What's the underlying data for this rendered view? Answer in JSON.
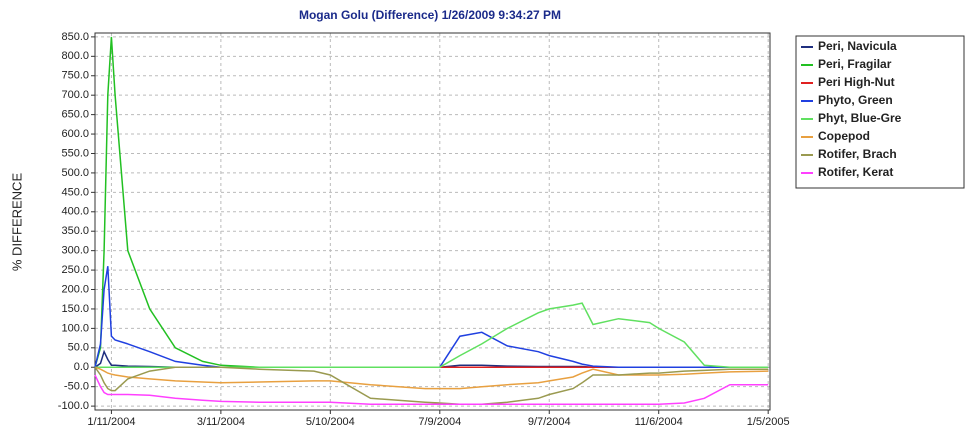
{
  "chart_data": {
    "type": "line",
    "title": "Mogan Golu (Difference)  1/26/2009 9:34:27 PM",
    "y_label": "% DIFFERENCE",
    "x": [
      "1/2/2004",
      "1/5/2004",
      "1/7/2004",
      "1/9/2004",
      "1/11/2004",
      "1/13/2004",
      "1/20/2004",
      "2/1/2004",
      "2/15/2004",
      "3/1/2004",
      "3/11/2004",
      "4/1/2004",
      "5/1/2004",
      "5/10/2004",
      "6/1/2004",
      "7/1/2004",
      "7/9/2004",
      "7/20/2004",
      "8/1/2004",
      "8/15/2004",
      "9/1/2004",
      "9/7/2004",
      "9/20/2004",
      "9/25/2004",
      "10/1/2004",
      "10/15/2004",
      "11/1/2004",
      "11/6/2004",
      "11/20/2004",
      "12/1/2004",
      "12/15/2004",
      "1/5/2005"
    ],
    "xlim": [
      "1/2/2004",
      "1/6/2005"
    ],
    "xticks": [
      "1/11/2004",
      "3/11/2004",
      "5/10/2004",
      "7/9/2004",
      "9/7/2004",
      "11/6/2004",
      "1/5/2005"
    ],
    "ylim": [
      -110,
      860
    ],
    "yticks": [
      {
        "value": -100,
        "label": "-100.0"
      },
      {
        "value": -50,
        "label": "-50.0"
      },
      {
        "value": 0,
        "label": "0.0"
      },
      {
        "value": 50,
        "label": "50.0"
      },
      {
        "value": 100,
        "label": "100.0"
      },
      {
        "value": 150,
        "label": "150.0"
      },
      {
        "value": 200,
        "label": "200.0"
      },
      {
        "value": 250,
        "label": "250.0"
      },
      {
        "value": 300,
        "label": "300.0"
      },
      {
        "value": 350,
        "label": "350.0"
      },
      {
        "value": 400,
        "label": "400.0"
      },
      {
        "value": 450,
        "label": "450.0"
      },
      {
        "value": 500,
        "label": "500.0"
      },
      {
        "value": 550,
        "label": "550.0"
      },
      {
        "value": 600,
        "label": "600.0"
      },
      {
        "value": 650,
        "label": "650.0"
      },
      {
        "value": 700,
        "label": "700.0"
      },
      {
        "value": 750,
        "label": "750.0"
      },
      {
        "value": 800,
        "label": "800.0"
      },
      {
        "value": 850,
        "label": "850.0"
      }
    ],
    "grid": true,
    "legend": "right",
    "series": [
      {
        "name": "Peri, Navicula",
        "color": "#1f2f7f",
        "values": [
          0,
          10,
          40,
          20,
          5,
          5,
          3,
          2,
          0,
          0,
          0,
          0,
          0,
          0,
          0,
          0,
          0,
          5,
          5,
          3,
          2,
          2,
          2,
          2,
          0,
          0,
          0,
          0,
          0,
          0,
          0,
          0
        ]
      },
      {
        "name": "Peri, Fragilar",
        "color": "#22c022",
        "values": [
          0,
          50,
          300,
          700,
          850,
          700,
          300,
          150,
          50,
          15,
          5,
          0,
          0,
          0,
          0,
          0,
          0,
          0,
          0,
          0,
          0,
          0,
          0,
          0,
          0,
          0,
          0,
          0,
          0,
          0,
          0,
          0
        ]
      },
      {
        "name": "Peri High-Nut",
        "color": "#e02020",
        "values": [
          0,
          0,
          0,
          0,
          0,
          0,
          0,
          0,
          0,
          0,
          0,
          0,
          0,
          0,
          0,
          0,
          0,
          0,
          0,
          0,
          0,
          0,
          0,
          0,
          0,
          0,
          0,
          0,
          0,
          0,
          0,
          0
        ]
      },
      {
        "name": "Phyto, Green",
        "color": "#2040e0",
        "values": [
          0,
          60,
          200,
          260,
          80,
          70,
          60,
          40,
          15,
          5,
          0,
          0,
          0,
          0,
          0,
          0,
          0,
          80,
          90,
          55,
          40,
          30,
          15,
          8,
          3,
          0,
          0,
          0,
          0,
          0,
          0,
          0
        ]
      },
      {
        "name": "Phyt, Blue-Gre",
        "color": "#60e060",
        "values": [
          0,
          0,
          0,
          0,
          0,
          0,
          0,
          0,
          0,
          0,
          0,
          0,
          0,
          0,
          0,
          0,
          0,
          30,
          60,
          100,
          140,
          150,
          160,
          165,
          110,
          125,
          115,
          100,
          65,
          5,
          0,
          0
        ]
      },
      {
        "name": "Copepod",
        "color": "#e8a040",
        "values": [
          0,
          -5,
          -10,
          -15,
          -18,
          -20,
          -25,
          -30,
          -35,
          -38,
          -40,
          -38,
          -35,
          -35,
          -45,
          -55,
          -55,
          -55,
          -50,
          -45,
          -40,
          -35,
          -25,
          -15,
          -5,
          -20,
          -20,
          -20,
          -18,
          -15,
          -12,
          -10
        ]
      },
      {
        "name": "Rotifer, Brach",
        "color": "#9a9a50",
        "values": [
          0,
          -20,
          -40,
          -55,
          -60,
          -60,
          -30,
          -10,
          0,
          0,
          0,
          -5,
          -10,
          -20,
          -80,
          -90,
          -92,
          -95,
          -95,
          -90,
          -80,
          -70,
          -55,
          -40,
          -20,
          -20,
          -15,
          -15,
          -10,
          -8,
          -5,
          -5
        ]
      },
      {
        "name": "Rotifer, Kerat",
        "color": "#ff40ff",
        "values": [
          -20,
          -50,
          -65,
          -70,
          -70,
          -70,
          -70,
          -72,
          -80,
          -85,
          -88,
          -90,
          -90,
          -90,
          -95,
          -95,
          -95,
          -95,
          -95,
          -95,
          -95,
          -95,
          -95,
          -95,
          -95,
          -95,
          -95,
          -95,
          -92,
          -80,
          -45,
          -45
        ]
      }
    ]
  }
}
